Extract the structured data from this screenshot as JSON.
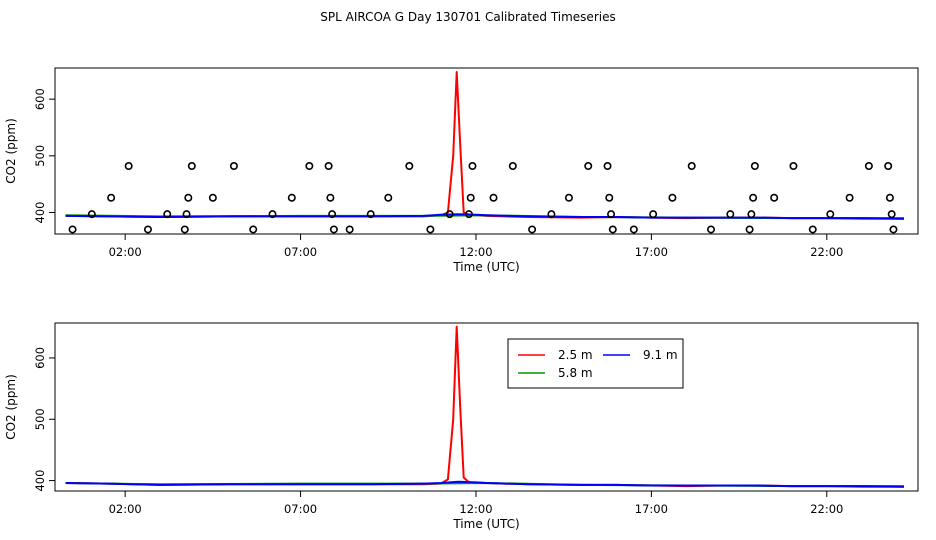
{
  "title": "SPL AIRCOA G  Day 130701  Calibrated Timeseries",
  "colors": {
    "s25": "#ff0000",
    "s58": "#009900",
    "s91": "#0000ff",
    "axis": "#000000"
  },
  "chart_data": [
    {
      "type": "line",
      "xlabel": "Time (UTC)",
      "ylabel": "CO2 (ppm)",
      "xlim": [
        0.0,
        24.6
      ],
      "ylim": [
        362,
        655
      ],
      "x_ticks": [
        2,
        7,
        12,
        17,
        22
      ],
      "x_tick_labels": [
        "02:00",
        "07:00",
        "12:00",
        "17:00",
        "22:00"
      ],
      "y_ticks": [
        400,
        500,
        600
      ],
      "y_tick_labels": [
        "400",
        "500",
        "600"
      ],
      "series": [
        {
          "color": "s25",
          "x": [
            0.3,
            1.5,
            3,
            5,
            7,
            9,
            10.5,
            11.0,
            11.2,
            11.35,
            11.45,
            11.55,
            11.65,
            11.8,
            12.3,
            13.5,
            15,
            16,
            17,
            18,
            19,
            20,
            21,
            22,
            23,
            24.2
          ],
          "y": [
            394,
            393,
            392,
            393,
            393,
            393,
            393,
            395,
            400,
            500,
            648,
            520,
            400,
            396,
            394,
            392,
            391,
            392,
            391,
            390,
            391,
            391,
            390,
            390,
            389,
            389
          ]
        },
        {
          "color": "s58",
          "x": [
            0.3,
            3,
            7,
            10.5,
            12.3,
            15,
            18,
            21,
            24.2
          ],
          "y": [
            395,
            393,
            394,
            394,
            395,
            392,
            391,
            390,
            390
          ]
        },
        {
          "color": "s91",
          "x": [
            0.3,
            1.5,
            3,
            5,
            7,
            9,
            10.5,
            11.0,
            11.5,
            12.0,
            12.3,
            13.5,
            15,
            16,
            17,
            18,
            19,
            20,
            21,
            22,
            23,
            24.2
          ],
          "y": [
            394,
            393,
            392,
            393,
            393,
            393,
            394,
            396,
            397,
            396,
            395,
            393,
            392,
            392,
            391,
            391,
            391,
            391,
            390,
            390,
            390,
            389
          ]
        }
      ],
      "points": {
        "x": [
          0.5,
          1.05,
          1.6,
          2.1,
          2.65,
          3.2,
          3.7,
          3.75,
          3.8,
          3.9,
          4.5,
          5.1,
          5.65,
          6.2,
          6.75,
          7.25,
          7.8,
          7.85,
          7.9,
          7.95,
          8.4,
          9.0,
          9.5,
          10.1,
          10.7,
          11.25,
          11.8,
          11.85,
          11.9,
          12.5,
          13.05,
          13.6,
          14.15,
          14.65,
          15.2,
          15.75,
          15.8,
          15.85,
          15.9,
          16.5,
          17.05,
          17.6,
          18.15,
          18.7,
          19.25,
          19.8,
          19.85,
          19.9,
          19.95,
          20.5,
          21.05,
          21.6,
          22.1,
          22.65,
          23.2,
          23.75,
          23.8,
          23.85,
          23.9
        ],
        "y": [
          370,
          397,
          426,
          482,
          370,
          397,
          370,
          397,
          426,
          482,
          426,
          482,
          370,
          397,
          426,
          482,
          482,
          426,
          397,
          370,
          370,
          397,
          426,
          482,
          370,
          397,
          397,
          426,
          482,
          426,
          482,
          370,
          397,
          426,
          482,
          482,
          426,
          397,
          370,
          370,
          397,
          426,
          482,
          370,
          397,
          370,
          397,
          426,
          482,
          426,
          482,
          370,
          397,
          426,
          482,
          482,
          426,
          397,
          370
        ]
      }
    },
    {
      "type": "line",
      "xlabel": "Time (UTC)",
      "ylabel": "CO2 (ppm)",
      "xlim": [
        0.0,
        24.6
      ],
      "ylim": [
        383,
        657
      ],
      "x_ticks": [
        2,
        7,
        12,
        17,
        22
      ],
      "x_tick_labels": [
        "02:00",
        "07:00",
        "12:00",
        "17:00",
        "22:00"
      ],
      "y_ticks": [
        400,
        500,
        600
      ],
      "y_tick_labels": [
        "400",
        "500",
        "600"
      ],
      "legend": {
        "position": "top-center",
        "entries": [
          {
            "label": "2.5 m",
            "color": "s25"
          },
          {
            "label": "9.1 m",
            "color": "s91"
          },
          {
            "label": "5.8 m",
            "color": "s58"
          }
        ]
      },
      "series": [
        {
          "name": "2.5 m",
          "color": "s25",
          "x": [
            0.3,
            1.5,
            3,
            5,
            7,
            9,
            10.5,
            11.0,
            11.2,
            11.35,
            11.45,
            11.55,
            11.65,
            11.8,
            12.3,
            13.5,
            15,
            16,
            17,
            18,
            19,
            20,
            21,
            22,
            23,
            24.2
          ],
          "y": [
            396,
            395,
            393,
            394,
            394,
            394,
            394,
            395,
            402,
            500,
            651,
            520,
            405,
            397,
            396,
            394,
            393,
            393,
            392,
            391,
            392,
            392,
            391,
            391,
            390,
            390
          ]
        },
        {
          "name": "5.8 m",
          "color": "s58",
          "x": [
            0.3,
            3,
            7,
            10.5,
            12.3,
            15,
            18,
            21,
            24.2
          ],
          "y": [
            396,
            394,
            395,
            395,
            396,
            393,
            392,
            391,
            391
          ]
        },
        {
          "name": "9.1 m",
          "color": "s91",
          "x": [
            0.3,
            1.5,
            3,
            5,
            7,
            9,
            10.5,
            11.0,
            11.5,
            12.0,
            12.3,
            13.5,
            15,
            16,
            17,
            18,
            19,
            20,
            21,
            22,
            23,
            24.2
          ],
          "y": [
            396,
            395,
            393,
            394,
            394,
            394,
            395,
            396,
            398,
            397,
            396,
            394,
            393,
            393,
            392,
            392,
            392,
            392,
            391,
            391,
            391,
            390
          ]
        }
      ]
    }
  ]
}
